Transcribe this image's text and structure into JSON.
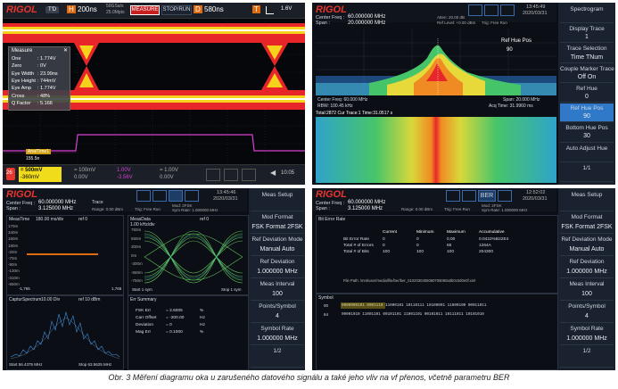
{
  "caption": "Obr. 3  Měření diagramu oka u zarušeného datového signálu a také jeho vliv na vf přenos, včetně parametru BER",
  "scope": {
    "logo": "RIGOL",
    "mode": "T'D",
    "h_label": "H",
    "timebase": "200ns",
    "rate1": "50GSa/s",
    "rate2": "25.0Mpts",
    "measure_btn": "MEASURE",
    "stop_btn": "STOP/RUN",
    "d_label": "D",
    "delay": "580ns",
    "t_label": "T",
    "trig_level": "1.6V",
    "measure_title": "Measure",
    "measure_rows": [
      {
        "k": "One",
        "v": ": 1.774V"
      },
      {
        "k": "Zero",
        "v": ": 0V"
      },
      {
        "k": "Eye Width",
        "v": ": 23.99ns"
      },
      {
        "k": "Eye Height",
        "v": ": 744mV"
      },
      {
        "k": "Eye Amp",
        "v": ": 1.774V"
      },
      {
        "k": "Cross",
        "v": ": 48%"
      },
      {
        "k": "Q Factor",
        "v": ": 5.166"
      }
    ],
    "ref_label": "Ana/Time1",
    "ref_val": "155.5n",
    "ch1_scale": "= 500mV",
    "ch1_offset": "-360mV",
    "ch2_scale": "= 100mV",
    "ch2_offset": "0.00V",
    "ch3_scale": "1.00V",
    "ch3_offset": "-3.56V",
    "ch4_scale": "= 1.00V",
    "ch4_offset": "0.00V",
    "time": "10:05",
    "fw": "26"
  },
  "spectrogram": {
    "logo": "RIGOL",
    "center_label": "Center Freq :",
    "center_val": "60.000000 MHz",
    "span_label": "Span :",
    "span_val": "20.000000 MHz",
    "trig_label": "Trig: Free Run",
    "atten": "Atten: 20.00 dB",
    "ref_level": "Ref Level: +0.00 dBm",
    "time": "13:45:49",
    "date": "2020/03/31",
    "ref_hue_pos": "Ref Hue Pos",
    "ref_hue_pos_val": "90",
    "center_bot": "Center Freq: 60.000 MHz",
    "span_bot": "Span: 20.000 MHz",
    "rbw": "RBW: 100.45 kHz",
    "acq": "Acq Time: 31.9960 ms",
    "cursor_text": "Total:2872 Cur Trace:1 Time:31.0517 s",
    "sidebar": [
      {
        "title": "Spectrogram",
        "val": ""
      },
      {
        "title": "Display Trace",
        "val": "1"
      },
      {
        "title": "Trace Selection",
        "val": "Time    TNum"
      },
      {
        "title": "Couple Marker Trace",
        "val": "Off      On"
      },
      {
        "title": "Ref Hue",
        "val": "0"
      },
      {
        "title": "Ref Hue Pos",
        "val": "90"
      },
      {
        "title": "Bottom Hue Pos",
        "val": "30"
      },
      {
        "title": "Auto Adjust Hue",
        "val": ""
      },
      {
        "title": "1/1",
        "val": ""
      }
    ]
  },
  "fsk": {
    "logo": "RIGOL",
    "center_label": "Center Freq :",
    "center_val": "60.000000 MHz",
    "span_label": "Span :",
    "span_val": "3.125000 MHz",
    "trace": "Trace",
    "time": "13:45:46",
    "date": "2020/03/31",
    "range": "Range: 0.00 dBm",
    "trig": "Trig: Free Run",
    "modulation": "Mod: 2FSK",
    "symbol_rate": "Sym Rate: 1.000000 MHz",
    "meas_time": "MeasTime",
    "meas_time_val": "180.00 ms/div",
    "ref_label": "ref 0",
    "meas_data": "MeasData",
    "meas_data_val": "1.00 kHz/div",
    "eye_title": "Eye Summary",
    "start_sym": "Start 1 sym",
    "stop_sym": "Stop 1 sym",
    "left_ticks": [
      "170m",
      "340m",
      "160m",
      "180m",
      "-20m",
      "-70m",
      "-90m",
      "-130m",
      "-310m",
      "-650m"
    ],
    "x_ticks": [
      "-1,765",
      "1,765"
    ],
    "eye_ticks": [
      "750m",
      "550m",
      "300m",
      "0m",
      "-300m",
      "-550m",
      "-750m"
    ],
    "spectrum_title": "CapturSpectrum",
    "spectrum_scale": "10.00 Div",
    "spectrum_ref": "ref 10 dBm",
    "spectrum_start": "Start 56.4375 MHz",
    "spectrum_stop": "Stop 63.5625 MHz",
    "err_title": "Err Summary",
    "err_rows": [
      {
        "k": "FSK Err",
        "v": "= 2.6005",
        "u": "%"
      },
      {
        "k": "Carr Offset",
        "v": "= -200.00",
        "u": "Hz"
      },
      {
        "k": "Deviation",
        "v": "= 0",
        "u": "Hz"
      },
      {
        "k": "Mag Err",
        "v": "= 0.1000",
        "u": "%"
      }
    ],
    "sidebar": [
      {
        "title": "Meas Setup",
        "val": ""
      },
      {
        "title": "Mod Format",
        "val": "FSK Format 2FSK"
      },
      {
        "title": "Ref Deviation Mode",
        "val": "Manual   Auto"
      },
      {
        "title": "Ref Deviation",
        "val": "1.000000 MHz"
      },
      {
        "title": "Meas Interval",
        "val": "100"
      },
      {
        "title": "Points/Symbol",
        "val": "4"
      },
      {
        "title": "Symbol Rate",
        "val": "1.000000 MHz"
      },
      {
        "title": "1/2",
        "val": ""
      }
    ]
  },
  "ber": {
    "logo": "RIGOL",
    "center_label": "Center Freq :",
    "center_val": "60.000000 MHz",
    "span_label": "Span :",
    "span_val": "3.125000 MHz",
    "ber_btn": "BER",
    "time": "12:52:02",
    "date": "2020/03/31",
    "range": "Range: 0.00 dBm",
    "trig": "Trig: Free Run",
    "modulation": "Mod: 2FSK",
    "symbol_rate": "Sym Rate: 1.000000 MHz",
    "section": "Bit Error Rate",
    "headers": [
      "",
      "Current",
      "Minimum",
      "Maximum",
      "Accumulative"
    ],
    "rows": [
      [
        "Bit Error Rate",
        "0",
        "0",
        "0.00",
        "0.0422%B22E4"
      ],
      [
        "Total # of Errors",
        "0",
        "0",
        "65",
        "1264A"
      ],
      [
        "Total # of Bits",
        "100",
        "100",
        "100",
        "204300"
      ]
    ],
    "file_path": "File Path: /mnt/user/media/file/ber/ber_0102030405060708090a0b0c0d0e0f.xml",
    "symbol_title": "Symbol",
    "symbol_rows": [
      "0000000101 0001110 11000101 10110111 10100001 11000100 00011011",
      "00001010 11001101 00101101 11001101 00101011 10111011 10101010"
    ],
    "symbol_index": [
      "00",
      "64"
    ],
    "sidebar": [
      {
        "title": "Meas Setup",
        "val": ""
      },
      {
        "title": "Mod Format",
        "val": "FSK Format 2FSK"
      },
      {
        "title": "Ref Deviation Mode",
        "val": "Manual   Auto"
      },
      {
        "title": "Ref Deviation",
        "val": "1.000000 MHz"
      },
      {
        "title": "Meas Interval",
        "val": "100"
      },
      {
        "title": "Points/Symbol",
        "val": "4"
      },
      {
        "title": "Symbol Rate",
        "val": "1.000000 MHz"
      },
      {
        "title": "1/2",
        "val": ""
      }
    ]
  }
}
